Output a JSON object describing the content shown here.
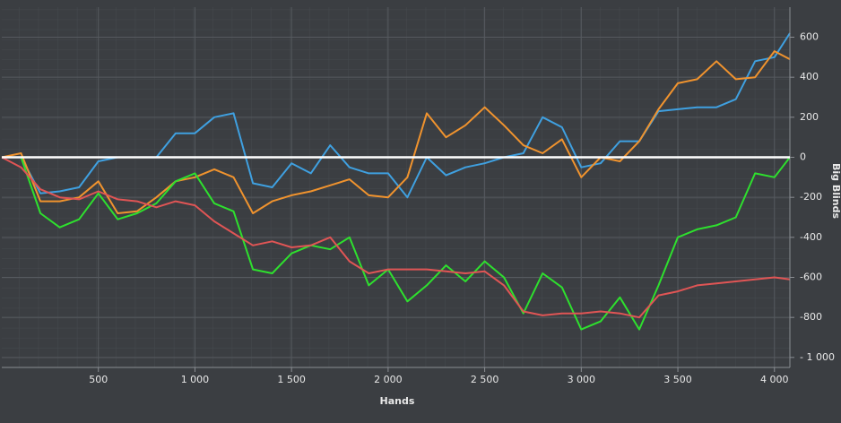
{
  "chart_data": {
    "type": "line",
    "x_label": "Hands",
    "y_label": "Big Blinds",
    "x": [
      0,
      100,
      200,
      300,
      400,
      500,
      600,
      700,
      800,
      900,
      1000,
      1100,
      1200,
      1300,
      1400,
      1500,
      1600,
      1700,
      1800,
      1900,
      2000,
      2100,
      2200,
      2300,
      2400,
      2500,
      2600,
      2700,
      2800,
      2900,
      3000,
      3100,
      3200,
      3300,
      3400,
      3500,
      3600,
      3700,
      3800,
      3900,
      4000,
      4080
    ],
    "series": [
      {
        "color": "#3fa0e0",
        "values": [
          0,
          0,
          -180,
          -170,
          -150,
          -20,
          0,
          0,
          0,
          120,
          120,
          200,
          220,
          -130,
          -150,
          -30,
          -80,
          60,
          -50,
          -80,
          -80,
          -200,
          0,
          -90,
          -50,
          -30,
          0,
          20,
          200,
          150,
          -50,
          -30,
          80,
          80,
          230,
          240,
          250,
          250,
          290,
          480,
          500,
          620
        ]
      },
      {
        "color": "#f0932e",
        "values": [
          0,
          20,
          -220,
          -220,
          -200,
          -120,
          -280,
          -270,
          -200,
          -120,
          -100,
          -60,
          -100,
          -280,
          -220,
          -190,
          -170,
          -140,
          -110,
          -190,
          -200,
          -100,
          220,
          100,
          160,
          250,
          160,
          60,
          20,
          90,
          -100,
          0,
          -20,
          80,
          240,
          370,
          390,
          480,
          390,
          400,
          530,
          490
        ]
      },
      {
        "color": "#2ee02e",
        "values": [
          0,
          0,
          -280,
          -350,
          -310,
          -180,
          -310,
          -280,
          -230,
          -120,
          -80,
          -230,
          -270,
          -560,
          -580,
          -480,
          -440,
          -460,
          -400,
          -640,
          -560,
          -720,
          -640,
          -540,
          -620,
          -520,
          -600,
          -780,
          -580,
          -650,
          -860,
          -820,
          -700,
          -860,
          -640,
          -400,
          -360,
          -340,
          -300,
          -80,
          -100,
          0
        ]
      },
      {
        "color": "#e05555",
        "values": [
          0,
          -50,
          -160,
          -200,
          -210,
          -170,
          -210,
          -220,
          -250,
          -220,
          -240,
          -320,
          -380,
          -440,
          -420,
          -450,
          -440,
          -400,
          -520,
          -580,
          -560,
          -560,
          -560,
          -570,
          -580,
          -570,
          -640,
          -770,
          -790,
          -780,
          -780,
          -770,
          -780,
          -800,
          -690,
          -670,
          -640,
          -630,
          -620,
          -610,
          -600,
          -610
        ]
      }
    ],
    "xlim": [
      0,
      4080
    ],
    "ylim": [
      -1050,
      750
    ],
    "xticks": [
      500,
      {
        "value": 1000,
        "label": "1 000"
      },
      {
        "value": 1500,
        "label": "1 500"
      },
      {
        "value": 2000,
        "label": "2 000"
      },
      {
        "value": 2500,
        "label": "2 500"
      },
      {
        "value": 3000,
        "label": "3 000"
      },
      {
        "value": 3500,
        "label": "3 500"
      },
      {
        "value": 4000,
        "label": "4 000"
      }
    ],
    "yticks": [
      600,
      400,
      200,
      0,
      -200,
      -400,
      -600,
      -800,
      {
        "value": -1000,
        "label": "- 1 000"
      }
    ],
    "grid": true,
    "y_axis_side": "right"
  }
}
